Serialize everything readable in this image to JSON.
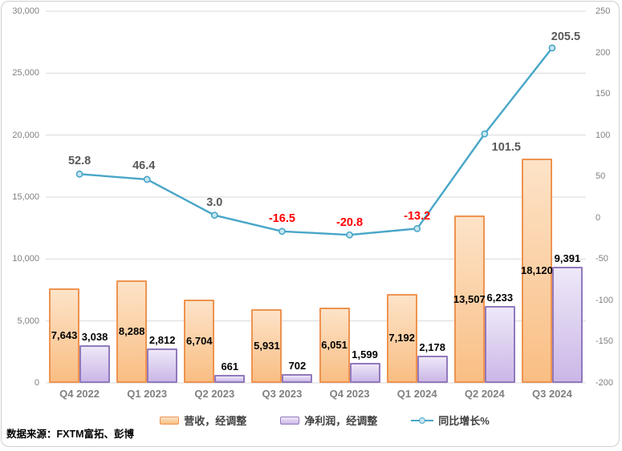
{
  "source_note": "数据来源：FXTM富拓、彭博",
  "legend": [
    {
      "label": "营收，经调整"
    },
    {
      "label": "净利润，经调整"
    },
    {
      "label": "同比增长%"
    }
  ],
  "colors": {
    "revenue_fill_top": "#FDE3C8",
    "revenue_fill_bottom": "#F9BE83",
    "revenue_border": "#EE9350",
    "profit_fill_top": "#EEE8F8",
    "profit_fill_bottom": "#CBB7E7",
    "profit_border": "#9179BC",
    "line": "#48A6C8",
    "marker_fill": "#C9E6F1",
    "label_positive": "#595959",
    "label_negative": "#FF0000",
    "bar_label": "#000000",
    "axis_label": "#808080",
    "category_label": "#7F7F7F",
    "gridline": "#D9D9D9",
    "legend_text": "#404040",
    "source_text": "#000000",
    "frame_border": "#CFCFCF"
  },
  "chart_data": {
    "type": "combo",
    "categories": [
      "Q4 2022",
      "Q1 2023",
      "Q2 2023",
      "Q3 2023",
      "Q4 2023",
      "Q1 2024",
      "Q2 2024",
      "Q3 2024"
    ],
    "series": [
      {
        "name": "营收，经调整",
        "type": "bar",
        "axis": "left",
        "values": [
          7643,
          8288,
          6704,
          5931,
          6051,
          7192,
          13507,
          18120
        ],
        "labels": [
          "7,643",
          "8,288",
          "6,704",
          "5,931",
          "6,051",
          "7,192",
          "13,507",
          "18,120"
        ],
        "label_placement": "inside-center"
      },
      {
        "name": "净利润，经调整",
        "type": "bar",
        "axis": "left",
        "values": [
          3038,
          2812,
          661,
          702,
          1599,
          2178,
          6233,
          9391
        ],
        "labels": [
          "3,038",
          "2,812",
          "661",
          "702",
          "1,599",
          "2,178",
          "6,233",
          "9,391"
        ],
        "label_placement": "outside-end"
      },
      {
        "name": "同比增长%",
        "type": "line",
        "axis": "right",
        "values": [
          52.8,
          46.4,
          3.0,
          -16.5,
          -20.8,
          -13.2,
          101.5,
          205.5
        ],
        "labels": [
          "52.8",
          "46.4",
          "3.0",
          "-16.5",
          "-20.8",
          "-13.2",
          "101.5",
          "205.5"
        ],
        "label_dx": [
          0,
          -4,
          0,
          0,
          0,
          0,
          27,
          17
        ],
        "label_dy": [
          -16,
          -17,
          -16,
          -16,
          -15,
          -15,
          17,
          -14
        ]
      }
    ],
    "left_axis": {
      "min": 0,
      "max": 30000,
      "tick_values": [
        30000,
        25000,
        20000,
        15000,
        10000,
        5000,
        0
      ],
      "tick_labels": [
        "30,000",
        "25,000",
        "20,000",
        "15,000",
        "10,000",
        "5,000",
        "0"
      ]
    },
    "right_axis": {
      "min": -200,
      "max": 250,
      "tick_values": [
        250,
        200,
        150,
        100,
        50,
        0,
        -50,
        -100,
        -150,
        -200
      ],
      "tick_labels": [
        "250",
        "200",
        "150",
        "100",
        "50",
        "0",
        "-50",
        "-100",
        "-150",
        "-200"
      ]
    },
    "grid": true,
    "legend_position": "bottom"
  }
}
